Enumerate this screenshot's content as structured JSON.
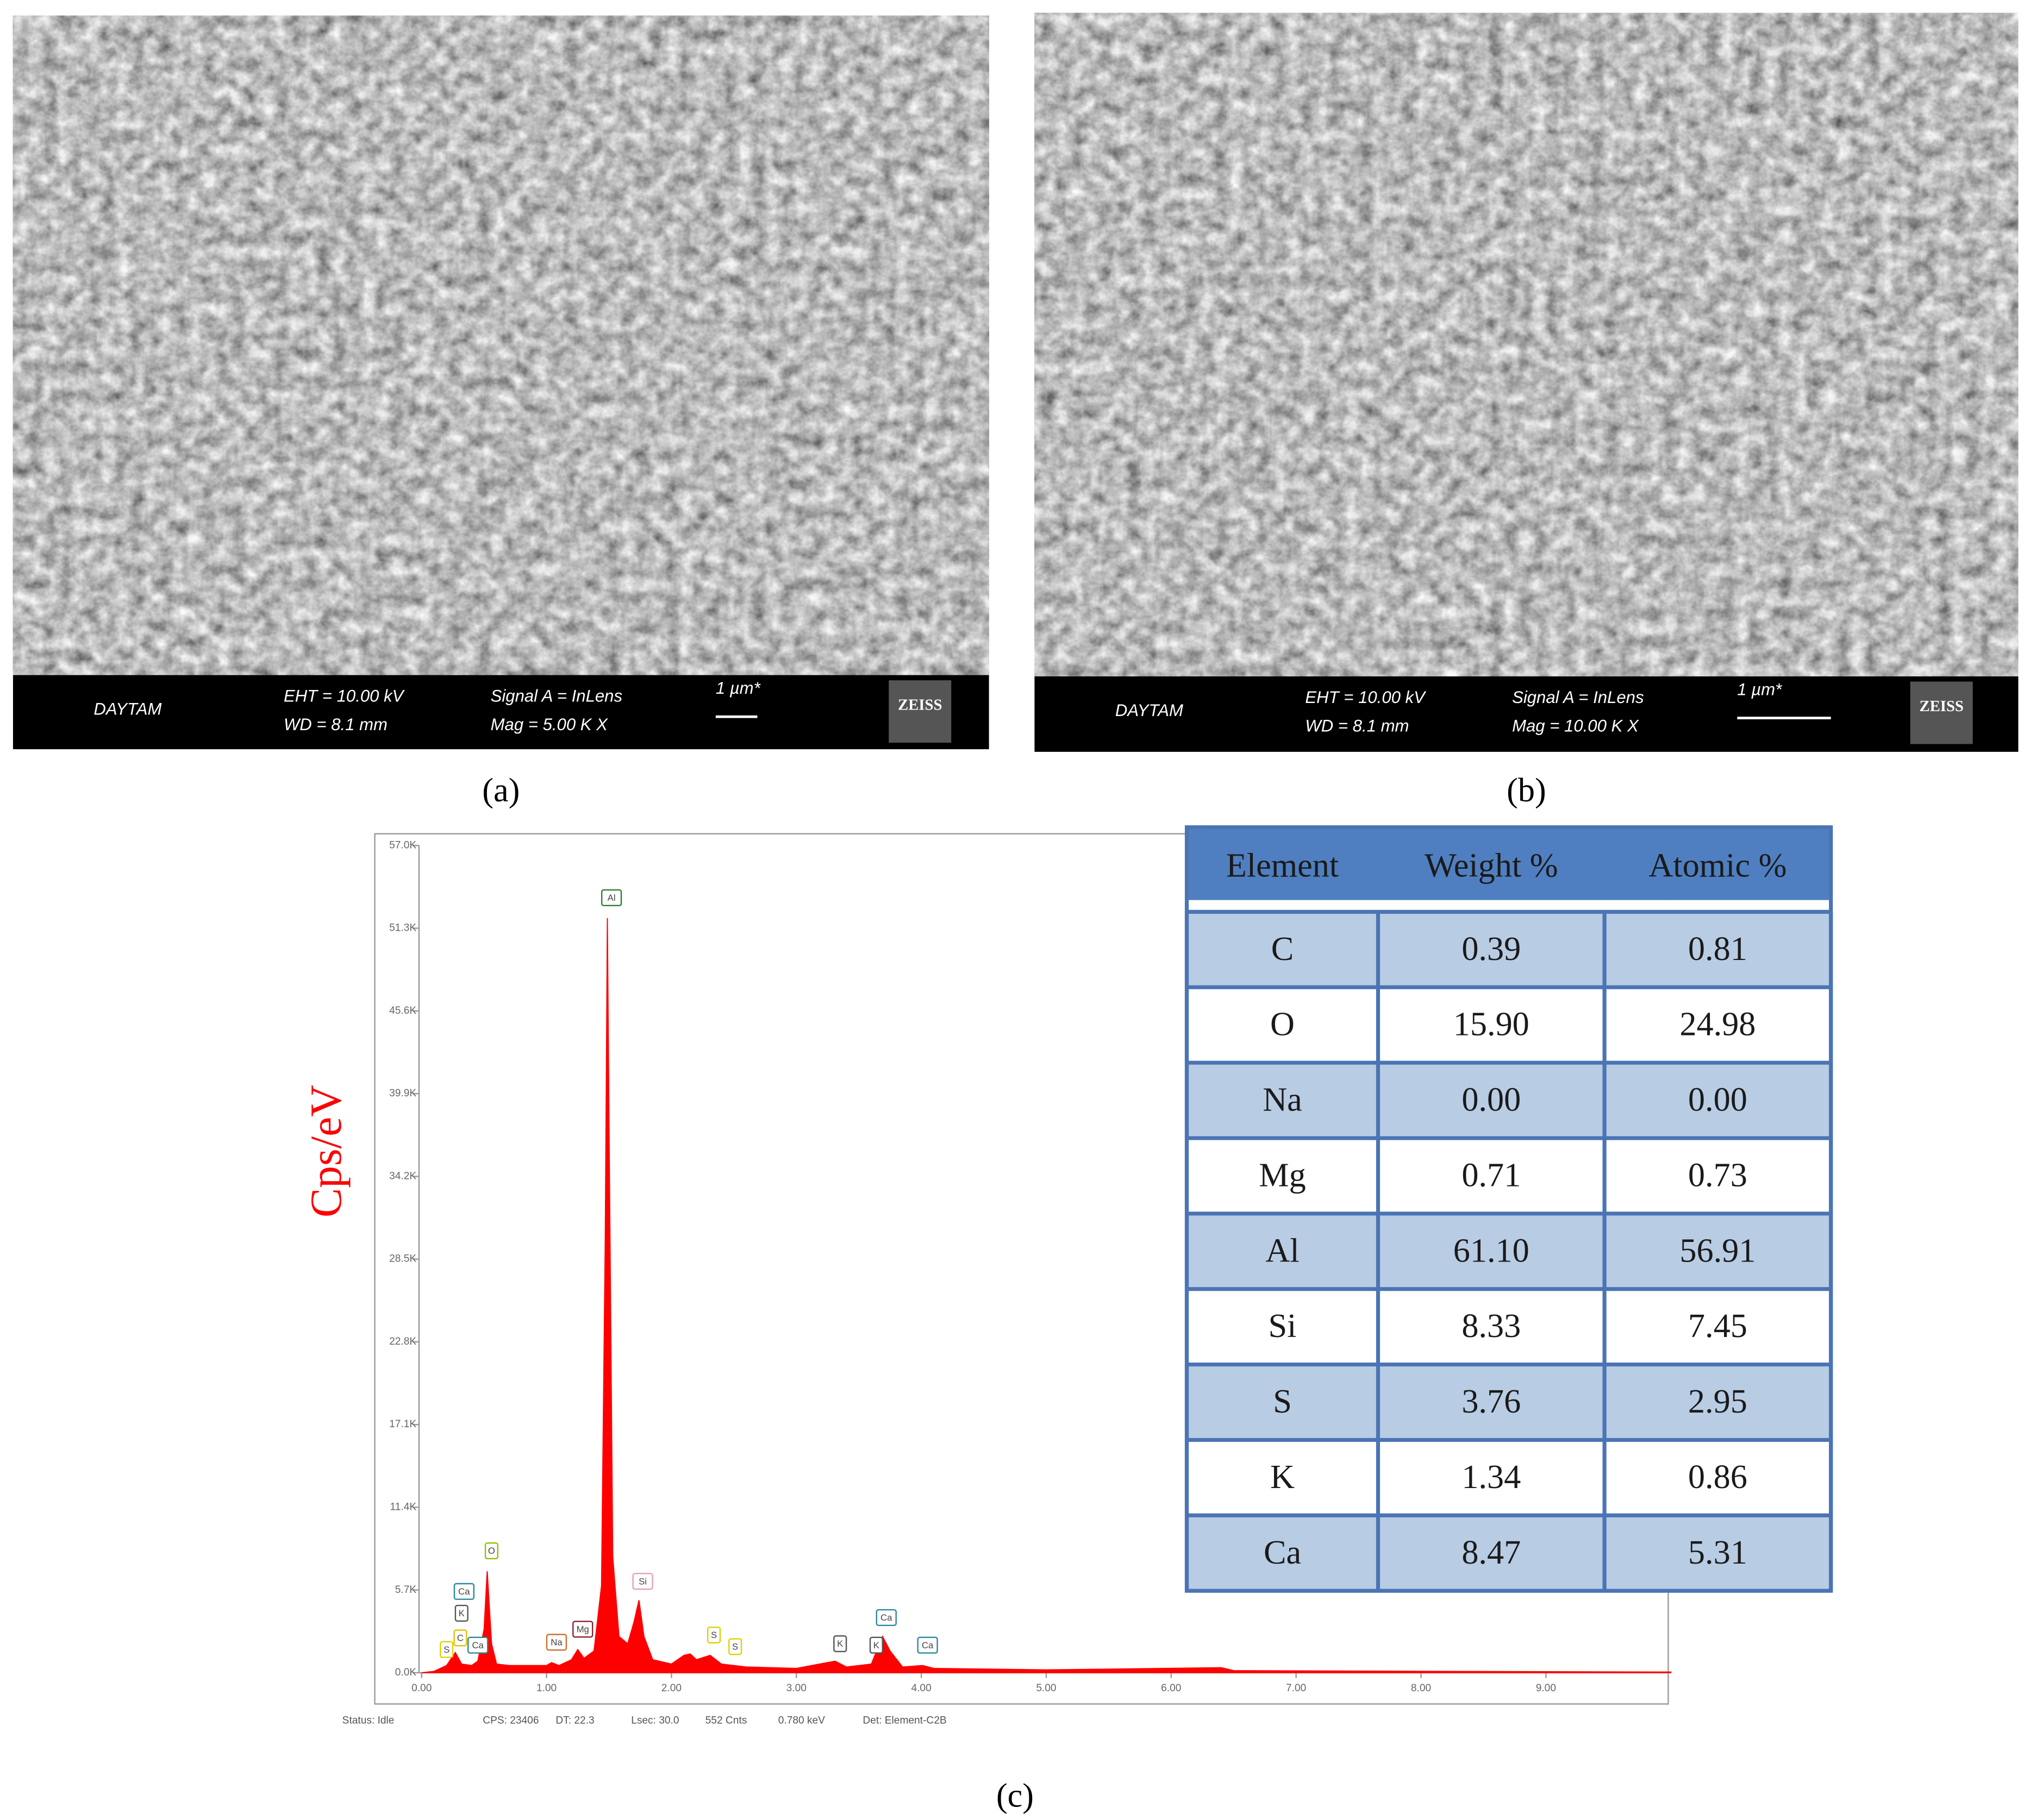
{
  "panels": [
    {
      "caption": "(a)",
      "bar": {
        "operator": "DAYTAM",
        "eht": "EHT = 10.00 kV",
        "wd": "WD = 8.1 mm",
        "signal": "Signal A = InLens",
        "mag": "Mag =    5.00 K X",
        "scale": "1 µm*",
        "brand": "ZEISS"
      }
    },
    {
      "caption": "(b)",
      "bar": {
        "operator": "DAYTAM",
        "eht": "EHT = 10.00 kV",
        "wd": "WD = 8.1 mm",
        "signal": "Signal A = InLens",
        "mag": "Mag =    10.00 K X",
        "scale": "1 µm*",
        "brand": "ZEISS"
      }
    }
  ],
  "caption_c": "(c)",
  "chart_data": {
    "type": "area",
    "y_label": "Cps/eV",
    "color": "#ff0000",
    "x": [
      0.0,
      0.1,
      0.2,
      0.27,
      0.32,
      0.4,
      0.45,
      0.5,
      0.525,
      0.56,
      0.6,
      0.7,
      0.8,
      1.0,
      1.04,
      1.1,
      1.2,
      1.25,
      1.3,
      1.38,
      1.44,
      1.47,
      1.487,
      1.5,
      1.53,
      1.58,
      1.65,
      1.7,
      1.74,
      1.78,
      1.85,
      2.0,
      2.1,
      2.15,
      2.2,
      2.31,
      2.4,
      2.6,
      3.0,
      3.31,
      3.4,
      3.6,
      3.69,
      3.75,
      3.85,
      4.01,
      4.1,
      5.0,
      6.4,
      6.5,
      8.0,
      10.0
    ],
    "values": [
      0,
      100,
      500,
      1400,
      600,
      500,
      800,
      3000,
      7000,
      2000,
      600,
      500,
      500,
      500,
      700,
      500,
      900,
      1600,
      1000,
      1500,
      6000,
      30000,
      52000,
      38000,
      8000,
      2500,
      2000,
      3500,
      5000,
      2500,
      900,
      600,
      1200,
      1300,
      900,
      1200,
      600,
      400,
      300,
      800,
      400,
      600,
      2500,
      1500,
      400,
      500,
      300,
      200,
      350,
      150,
      100,
      50
    ],
    "xlim": [
      0,
      10
    ],
    "ylim": [
      0,
      57000
    ],
    "xticks": [
      {
        "value": 0,
        "label": "0.00"
      },
      {
        "value": 1,
        "label": "1.00"
      },
      {
        "value": 2,
        "label": "2.00"
      },
      {
        "value": 3,
        "label": "3.00"
      },
      {
        "value": 4,
        "label": "4.00"
      },
      {
        "value": 5,
        "label": "5.00"
      },
      {
        "value": 6,
        "label": "6.00"
      },
      {
        "value": 7,
        "label": "7.00"
      },
      {
        "value": 8,
        "label": "8.00"
      },
      {
        "value": 9,
        "label": "9.00"
      }
    ],
    "yticks": [
      {
        "value": 0,
        "label": "0.0K"
      },
      {
        "value": 5700,
        "label": "5.7K"
      },
      {
        "value": 11400,
        "label": "11.4K"
      },
      {
        "value": 17100,
        "label": "17.1K"
      },
      {
        "value": 22800,
        "label": "22.8K"
      },
      {
        "value": 28500,
        "label": "28.5K"
      },
      {
        "value": 34200,
        "label": "34.2K"
      },
      {
        "value": 39900,
        "label": "39.9K"
      },
      {
        "value": 45600,
        "label": "45.6K"
      },
      {
        "value": 51300,
        "label": "51.3K"
      },
      {
        "value": 57000,
        "label": "57.0K"
      }
    ],
    "annotations": [
      {
        "text": "Al",
        "x": 1.52,
        "y": 53400,
        "color": "#2e7d32"
      },
      {
        "text": "O",
        "x": 0.56,
        "y": 8400,
        "color": "#8bc400"
      },
      {
        "text": "Si",
        "x": 1.77,
        "y": 6300,
        "color": "#e8a0b0"
      },
      {
        "text": "Ca",
        "x": 0.34,
        "y": 5600,
        "color": "#2a8a9a"
      },
      {
        "text": "K",
        "x": 0.32,
        "y": 4100,
        "color": "#555555"
      },
      {
        "text": "C",
        "x": 0.31,
        "y": 2400,
        "color": "#e0c000"
      },
      {
        "text": "S",
        "x": 0.2,
        "y": 1600,
        "color": "#e0d000"
      },
      {
        "text": "Ca",
        "x": 0.45,
        "y": 1900,
        "color": "#2a8a9a"
      },
      {
        "text": "Na",
        "x": 1.08,
        "y": 2100,
        "color": "#c87030"
      },
      {
        "text": "Mg",
        "x": 1.29,
        "y": 3000,
        "color": "#8b2030"
      },
      {
        "text": "S",
        "x": 2.34,
        "y": 2600,
        "color": "#e0d000"
      },
      {
        "text": "S",
        "x": 2.51,
        "y": 1800,
        "color": "#e0d000"
      },
      {
        "text": "K",
        "x": 3.35,
        "y": 2000,
        "color": "#555555"
      },
      {
        "text": "K",
        "x": 3.64,
        "y": 1900,
        "color": "#555555"
      },
      {
        "text": "Ca",
        "x": 3.72,
        "y": 3800,
        "color": "#2a8a9a"
      },
      {
        "text": "Ca",
        "x": 4.05,
        "y": 1900,
        "color": "#2a8a9a"
      }
    ],
    "status": [
      "Status: Idle",
      "CPS: 23406",
      "DT: 22.3",
      "Lsec: 30.0",
      "552 Cnts",
      "0.780 keV",
      "Det: Element-C2B"
    ]
  },
  "table": {
    "header": [
      "Element",
      "Weight %",
      "Atomic %"
    ],
    "rows": [
      [
        "C",
        "0.39",
        "0.81"
      ],
      [
        "O",
        "15.90",
        "24.98"
      ],
      [
        "Na",
        "0.00",
        "0.00"
      ],
      [
        "Mg",
        "0.71",
        "0.73"
      ],
      [
        "Al",
        "61.10",
        "56.91"
      ],
      [
        "Si",
        "8.33",
        "7.45"
      ],
      [
        "S",
        "3.76",
        "2.95"
      ],
      [
        "K",
        "1.34",
        "0.86"
      ],
      [
        "Ca",
        "8.47",
        "5.31"
      ]
    ]
  }
}
